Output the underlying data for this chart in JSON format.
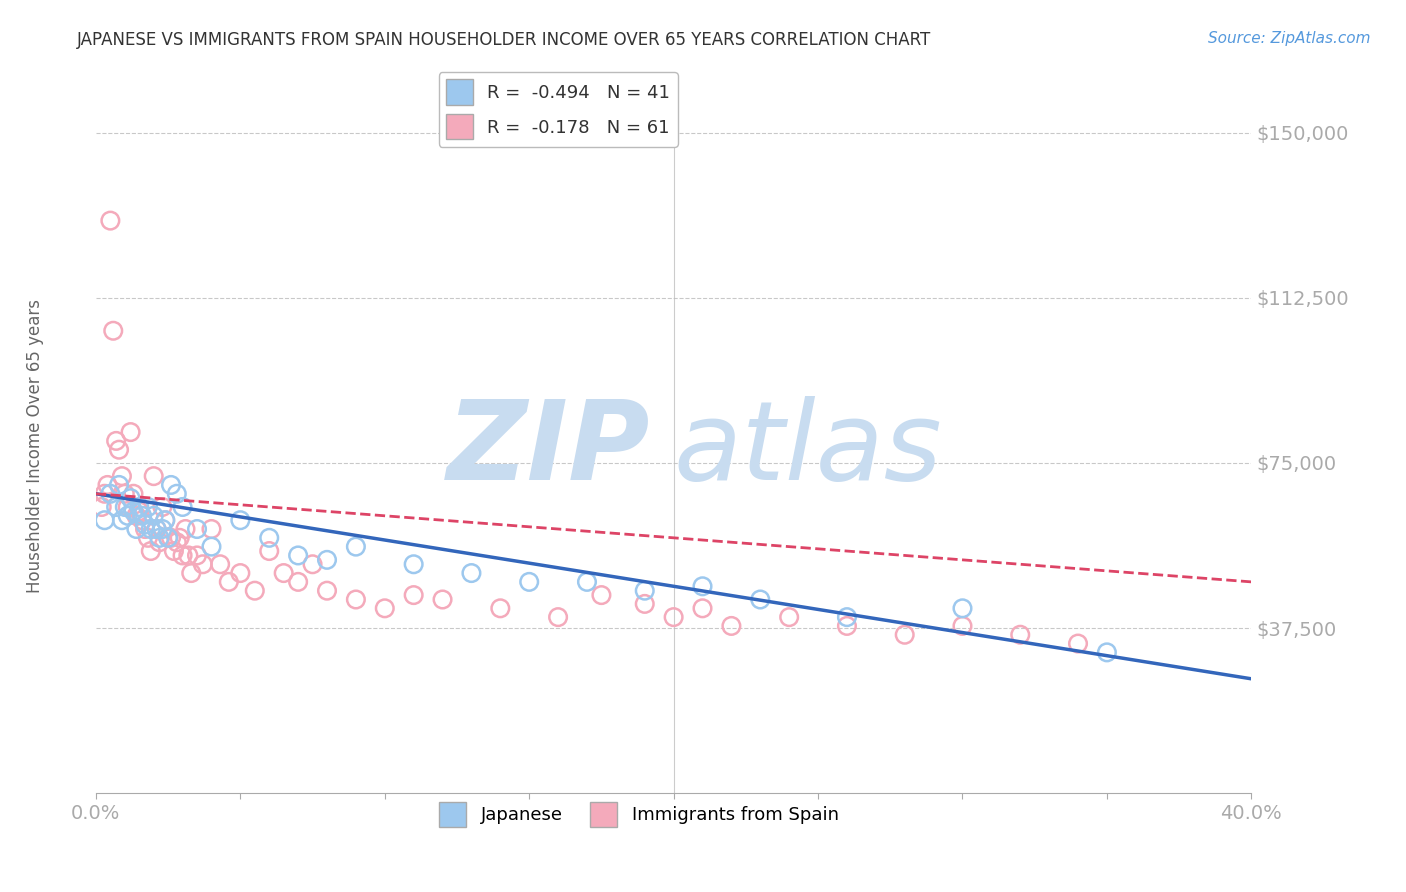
{
  "title": "JAPANESE VS IMMIGRANTS FROM SPAIN HOUSEHOLDER INCOME OVER 65 YEARS CORRELATION CHART",
  "source": "Source: ZipAtlas.com",
  "ylabel": "Householder Income Over 65 years",
  "xlim": [
    0.0,
    0.4
  ],
  "ylim": [
    0,
    162500
  ],
  "yticks": [
    37500,
    75000,
    112500,
    150000
  ],
  "ytick_labels": [
    "$37,500",
    "$75,000",
    "$112,500",
    "$150,000"
  ],
  "xtick_labels": [
    "0.0%",
    "",
    "",
    "",
    "",
    "",
    "",
    "",
    "40.0%"
  ],
  "xticks": [
    0.0,
    0.05,
    0.1,
    0.15,
    0.2,
    0.25,
    0.3,
    0.35,
    0.4
  ],
  "legend_labels": [
    "R =  -0.494   N = 41",
    "R =  -0.178   N = 61"
  ],
  "legend_bottom_labels": [
    "Japanese",
    "Immigrants from Spain"
  ],
  "japanese_color": "#9DC8EE",
  "spain_color": "#F4AABB",
  "trend_japanese_color": "#3366BB",
  "trend_spain_color": "#DD4466",
  "background_color": "#FFFFFF",
  "grid_color": "#BBBBBB",
  "title_color": "#333333",
  "axis_label_color": "#5599DD",
  "watermark_zip_color": "#C8DCF0",
  "watermark_atlas_color": "#C8DCF0",
  "japanese_x": [
    0.003,
    0.005,
    0.007,
    0.008,
    0.009,
    0.01,
    0.011,
    0.012,
    0.013,
    0.014,
    0.015,
    0.016,
    0.017,
    0.018,
    0.019,
    0.02,
    0.021,
    0.022,
    0.023,
    0.024,
    0.025,
    0.026,
    0.028,
    0.03,
    0.035,
    0.04,
    0.05,
    0.06,
    0.07,
    0.08,
    0.09,
    0.11,
    0.13,
    0.15,
    0.17,
    0.19,
    0.21,
    0.23,
    0.26,
    0.3,
    0.35
  ],
  "japanese_y": [
    62000,
    68000,
    65000,
    70000,
    62000,
    65000,
    63000,
    67000,
    64000,
    60000,
    65000,
    63000,
    61000,
    65000,
    60000,
    63000,
    60000,
    58000,
    60000,
    62000,
    58000,
    70000,
    68000,
    65000,
    60000,
    56000,
    62000,
    58000,
    54000,
    53000,
    56000,
    52000,
    50000,
    48000,
    48000,
    46000,
    47000,
    44000,
    40000,
    42000,
    32000
  ],
  "spain_x": [
    0.002,
    0.003,
    0.004,
    0.005,
    0.006,
    0.007,
    0.008,
    0.009,
    0.01,
    0.011,
    0.012,
    0.013,
    0.014,
    0.015,
    0.016,
    0.017,
    0.018,
    0.019,
    0.02,
    0.021,
    0.022,
    0.023,
    0.024,
    0.025,
    0.026,
    0.027,
    0.028,
    0.029,
    0.03,
    0.031,
    0.032,
    0.033,
    0.035,
    0.037,
    0.04,
    0.043,
    0.046,
    0.05,
    0.055,
    0.06,
    0.065,
    0.07,
    0.075,
    0.08,
    0.09,
    0.1,
    0.11,
    0.12,
    0.14,
    0.16,
    0.175,
    0.19,
    0.2,
    0.21,
    0.22,
    0.24,
    0.26,
    0.28,
    0.3,
    0.32,
    0.34
  ],
  "spain_y": [
    65000,
    68000,
    70000,
    130000,
    105000,
    80000,
    78000,
    72000,
    68000,
    65000,
    82000,
    68000,
    63000,
    64000,
    62000,
    60000,
    58000,
    55000,
    72000,
    60000,
    57000,
    65000,
    62000,
    58000,
    58000,
    55000,
    57000,
    58000,
    54000,
    60000,
    54000,
    50000,
    54000,
    52000,
    60000,
    52000,
    48000,
    50000,
    46000,
    55000,
    50000,
    48000,
    52000,
    46000,
    44000,
    42000,
    45000,
    44000,
    42000,
    40000,
    45000,
    43000,
    40000,
    42000,
    38000,
    40000,
    38000,
    36000,
    38000,
    36000,
    34000
  ],
  "trend_jap_x0": 0.0,
  "trend_jap_y0": 68000,
  "trend_jap_x1": 0.4,
  "trend_jap_y1": 26000,
  "trend_spain_x0": 0.0,
  "trend_spain_y0": 68000,
  "trend_spain_x1": 0.4,
  "trend_spain_y1": 48000
}
